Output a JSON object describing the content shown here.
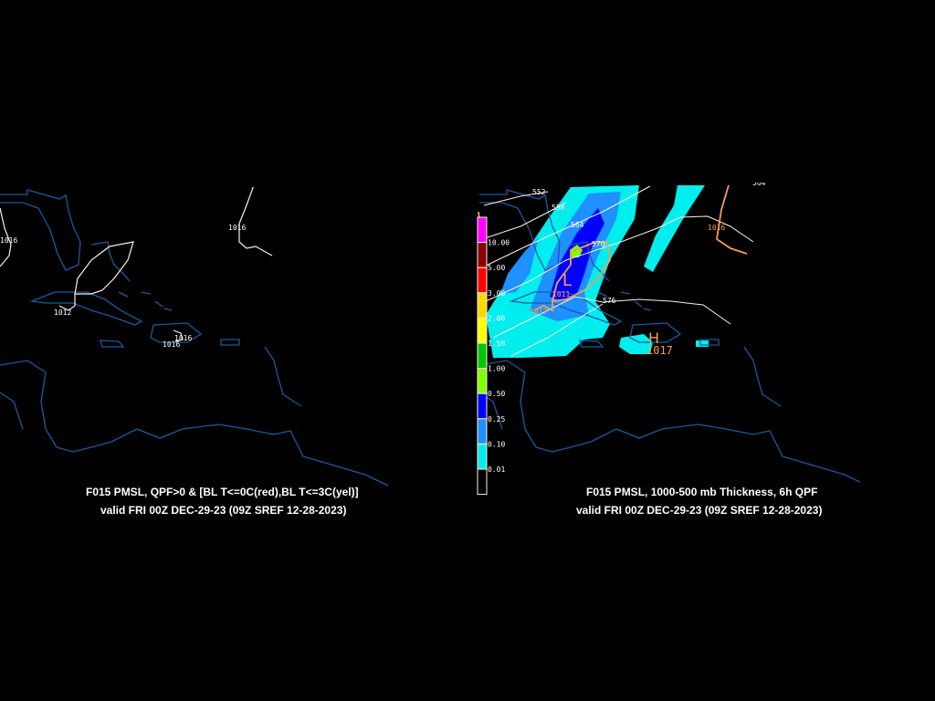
{
  "left_panel": {
    "title": "F015 PMSL, QPF>0 & [BL T<=0C(red),BL T<=3C(yel)]",
    "valid": "valid FRI 00Z DEC-29-23 (09Z SREF 12-28-2023)",
    "isobar_labels": [
      "1016",
      "1016",
      "1012",
      "1016",
      "1016"
    ]
  },
  "right_panel": {
    "title": "F015 PMSL, 1000-500 mb Thickness, 6h QPF",
    "valid": "valid FRI 00Z DEC-29-23 (09Z SREF 12-28-2023)",
    "thickness_labels": [
      "552",
      "558",
      "564",
      "570",
      "576",
      "564"
    ],
    "isobar_labels": [
      "1016",
      "1012",
      "1011",
      "1017"
    ],
    "low_marker": "L",
    "high_marker": "H",
    "legend": {
      "values": [
        "10.00",
        "5.00",
        "3.00",
        "2.00",
        "1.50",
        "1.00",
        "0.50",
        "0.25",
        "0.10",
        "0.01"
      ],
      "colors": [
        "#ff00ff",
        "#8b0000",
        "#ff0000",
        "#ffd700",
        "#ffff00",
        "#00c800",
        "#7fff00",
        "#0000ff",
        "#1e90ff",
        "#00eeee",
        "#000000"
      ]
    }
  },
  "colors": {
    "coastline": "#1a5aa0",
    "isobar_left": "#fff0e6",
    "isobar_right": "#f5a050",
    "thickness": "#fff0e6"
  }
}
